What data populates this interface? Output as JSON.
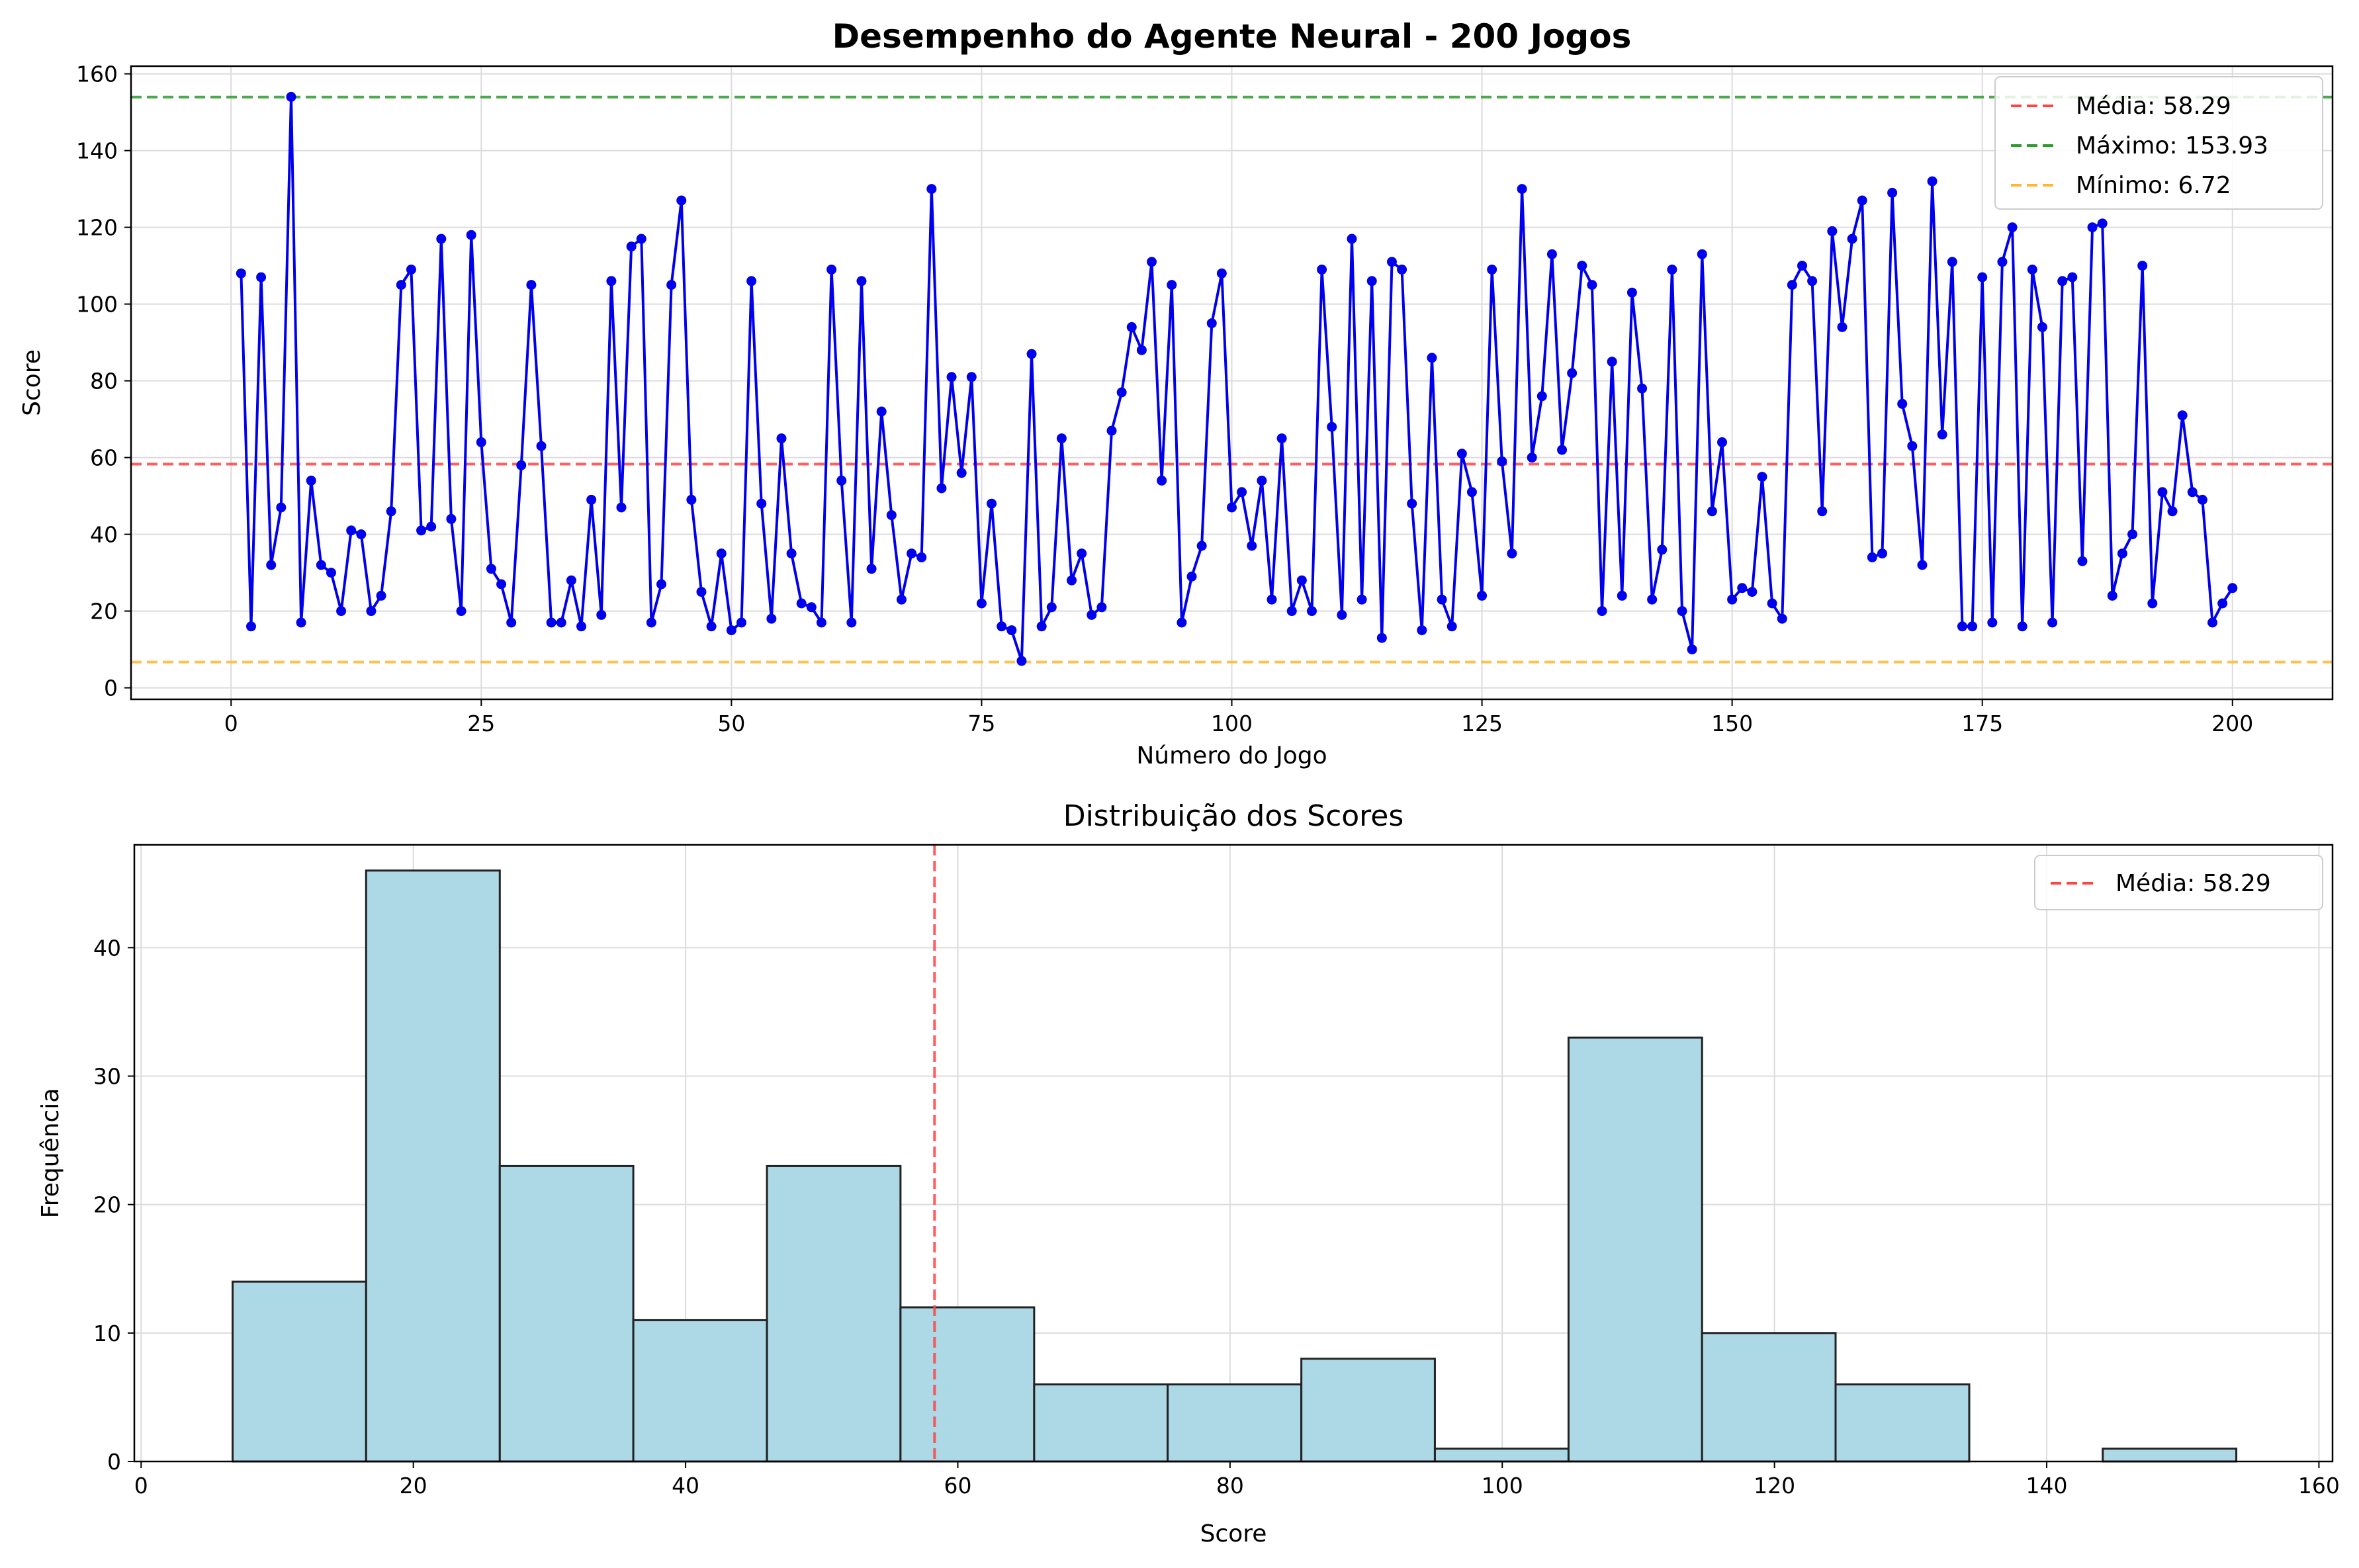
{
  "chart_data": [
    {
      "type": "line",
      "title": "Desempenho do Agente Neural - 200 Jogos",
      "xlabel": "Número do Jogo",
      "ylabel": "Score",
      "xlim": [
        -10,
        210
      ],
      "ylim": [
        -3,
        162
      ],
      "xticks": [
        0,
        25,
        50,
        75,
        100,
        125,
        150,
        175,
        200
      ],
      "yticks": [
        0,
        20,
        40,
        60,
        80,
        100,
        120,
        140,
        160
      ],
      "grid": true,
      "legend_position": "upper right",
      "series": [
        {
          "color": "#0000ee",
          "marker": "circle",
          "x_start": 1,
          "x_step": 1,
          "y": [
            108,
            16,
            107,
            32,
            47,
            154,
            17,
            54,
            32,
            30,
            20,
            41,
            40,
            20,
            24,
            46,
            105,
            109,
            41,
            42,
            117,
            44,
            20,
            118,
            64,
            31,
            27,
            17,
            58,
            105,
            63,
            17,
            17,
            28,
            16,
            49,
            19,
            106,
            47,
            115,
            117,
            17,
            27,
            105,
            127,
            49,
            25,
            16,
            35,
            15,
            17,
            106,
            48,
            18,
            65,
            35,
            22,
            21,
            17,
            109,
            54,
            17,
            106,
            31,
            72,
            45,
            23,
            35,
            34,
            130,
            52,
            81,
            56,
            81,
            22,
            48,
            16,
            15,
            7,
            87,
            16,
            21,
            65,
            28,
            35,
            19,
            21,
            67,
            77,
            94,
            88,
            111,
            54,
            105,
            17,
            29,
            37,
            95,
            108,
            47,
            51,
            37,
            54,
            23,
            65,
            20,
            28,
            20,
            109,
            68,
            19,
            117,
            23,
            106,
            13,
            111,
            109,
            48,
            15,
            86,
            23,
            16,
            61,
            51,
            24,
            109,
            59,
            35,
            130,
            60,
            76,
            113,
            62,
            82,
            110,
            105,
            20,
            85,
            24,
            103,
            78,
            23,
            36,
            109,
            20,
            10,
            113,
            46,
            64,
            23,
            26,
            25,
            55,
            22,
            18,
            105,
            110,
            106,
            46,
            119,
            94,
            117,
            127,
            34,
            35,
            129,
            74,
            63,
            32,
            132,
            66,
            111,
            16,
            16,
            107,
            17,
            111,
            120,
            16,
            109,
            94,
            17,
            106,
            107,
            33,
            120,
            121,
            24,
            35,
            40,
            110,
            22,
            51,
            46,
            71,
            51,
            49,
            17,
            22,
            26
          ]
        }
      ],
      "hlines": [
        {
          "label": "Média: 58.29",
          "value": 58.29,
          "color": "#ff4444",
          "style": "dashed"
        },
        {
          "label": "Máximo: 153.93",
          "value": 153.93,
          "color": "#2e9b2e",
          "style": "dashed"
        },
        {
          "label": "Mínimo: 6.72",
          "value": 6.72,
          "color": "#ffb732",
          "style": "dashed"
        }
      ]
    },
    {
      "type": "bar",
      "title": "Distribuição dos Scores",
      "xlabel": "Score",
      "ylabel": "Frequência",
      "xlim": [
        -0.5,
        161
      ],
      "ylim": [
        0,
        48
      ],
      "xticks": [
        0,
        20,
        40,
        60,
        80,
        100,
        120,
        140,
        160
      ],
      "yticks": [
        0,
        10,
        20,
        30,
        40
      ],
      "grid": true,
      "legend_position": "upper right",
      "bin_edges": [
        6.72,
        16.53,
        26.35,
        36.16,
        45.98,
        55.79,
        65.61,
        75.42,
        85.24,
        95.05,
        104.87,
        114.68,
        124.49,
        134.31,
        144.12,
        153.93
      ],
      "counts": [
        14,
        46,
        23,
        11,
        23,
        12,
        6,
        6,
        8,
        1,
        33,
        10,
        6,
        0,
        1
      ],
      "bar_color": "#add8e6",
      "edge_color": "#222222",
      "vlines": [
        {
          "label": "Média: 58.29",
          "value": 58.29,
          "color": "#ff4444",
          "style": "dashed"
        }
      ]
    }
  ]
}
